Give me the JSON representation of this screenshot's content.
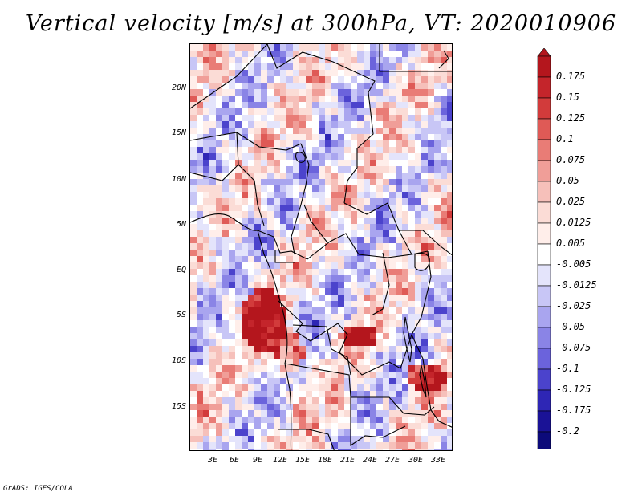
{
  "title": "Vertical velocity [m/s] at 300hPa, VT: 2020010906",
  "credit": "GrADS: IGES/COLA",
  "lat_labels": [
    "20N",
    "15N",
    "10N",
    "5N",
    "EQ",
    "5S",
    "10S",
    "15S"
  ],
  "lon_labels": [
    "3E",
    "6E",
    "9E",
    "12E",
    "15E",
    "18E",
    "21E",
    "24E",
    "27E",
    "30E",
    "33E"
  ],
  "colorbar": {
    "labels": [
      "0.175",
      "0.15",
      "0.125",
      "0.1",
      "0.075",
      "0.05",
      "0.025",
      "0.0125",
      "0.005",
      "-0.005",
      "-0.0125",
      "-0.025",
      "-0.05",
      "-0.075",
      "-0.1",
      "-0.125",
      "-0.175",
      "-0.2"
    ],
    "colors": [
      "#b4161d",
      "#c4252b",
      "#d23b3b",
      "#df5a56",
      "#e97c76",
      "#f09e98",
      "#f6c0ba",
      "#fbdcd6",
      "#ffeeea",
      "#ffffff",
      "#e4e4fb",
      "#c8c6f6",
      "#a9a5ef",
      "#8a84e6",
      "#6b63dc",
      "#4b43cc",
      "#2e26b5",
      "#1a1296",
      "#0c0a7a"
    ]
  }
}
